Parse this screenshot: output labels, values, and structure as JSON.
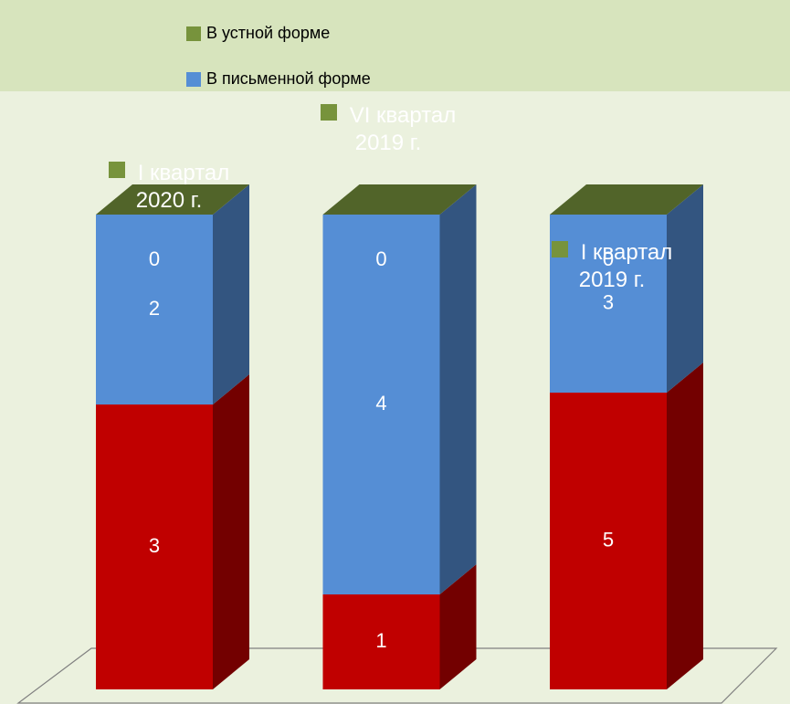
{
  "chart_data": {
    "type": "bar3d",
    "stacking": "percent",
    "categories": [
      "I квартал 2020 г.",
      "VI квартал 2019 г.",
      "I квартал 2019 г."
    ],
    "series": [
      {
        "color": "#c00000",
        "values": [
          3,
          1,
          5
        ]
      },
      {
        "name": "В письменной форме",
        "color": "#558ed5",
        "values": [
          2,
          4,
          3
        ]
      },
      {
        "name": "В устной форме",
        "color": "#77933c",
        "values": [
          0,
          0,
          0
        ]
      }
    ],
    "legend": "top"
  }
}
